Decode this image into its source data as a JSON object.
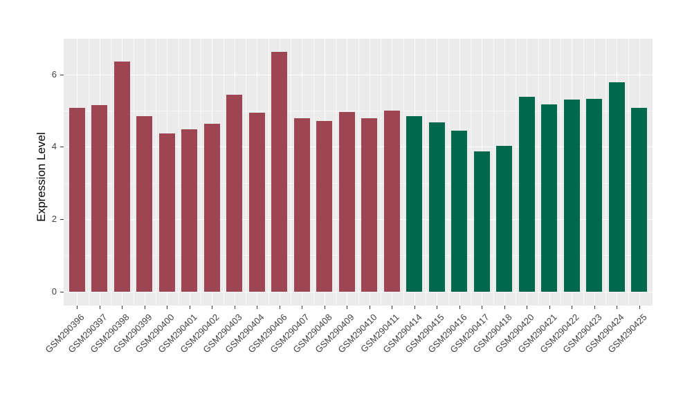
{
  "chart_data": {
    "type": "bar",
    "title": "",
    "xlabel": "",
    "ylabel": "Expression Level",
    "ylim": [
      0,
      6.96
    ],
    "yticks_major": [
      0,
      2,
      4,
      6
    ],
    "yticks_minor": [
      1,
      3,
      5
    ],
    "grid": "white major and minor gridlines on grey panel",
    "legend": "none",
    "panel_background": "#EBEBEB",
    "gridline_color": "#FFFFFF",
    "group_colors": {
      "left_group": "#9D4553",
      "right_group": "#00694D"
    },
    "categories": [
      "GSM290396",
      "GSM290397",
      "GSM290398",
      "GSM290399",
      "GSM290400",
      "GSM290401",
      "GSM290402",
      "GSM290403",
      "GSM290404",
      "GSM290406",
      "GSM290407",
      "GSM290408",
      "GSM290409",
      "GSM290410",
      "GSM290411",
      "GSM290414",
      "GSM290415",
      "GSM290416",
      "GSM290417",
      "GSM290418",
      "GSM290420",
      "GSM290421",
      "GSM290422",
      "GSM290423",
      "GSM290424",
      "GSM290425"
    ],
    "values": [
      5.07,
      5.15,
      6.36,
      4.85,
      4.37,
      4.48,
      4.64,
      5.43,
      4.94,
      6.63,
      4.78,
      4.71,
      4.96,
      4.78,
      4.99,
      4.84,
      4.68,
      4.44,
      3.88,
      4.02,
      5.39,
      5.18,
      5.3,
      5.32,
      5.78,
      5.07
    ],
    "colors": [
      "#9D4553",
      "#9D4553",
      "#9D4553",
      "#9D4553",
      "#9D4553",
      "#9D4553",
      "#9D4553",
      "#9D4553",
      "#9D4553",
      "#9D4553",
      "#9D4553",
      "#9D4553",
      "#9D4553",
      "#9D4553",
      "#9D4553",
      "#00694D",
      "#00694D",
      "#00694D",
      "#00694D",
      "#00694D",
      "#00694D",
      "#00694D",
      "#00694D",
      "#00694D",
      "#00694D",
      "#00694D"
    ]
  }
}
